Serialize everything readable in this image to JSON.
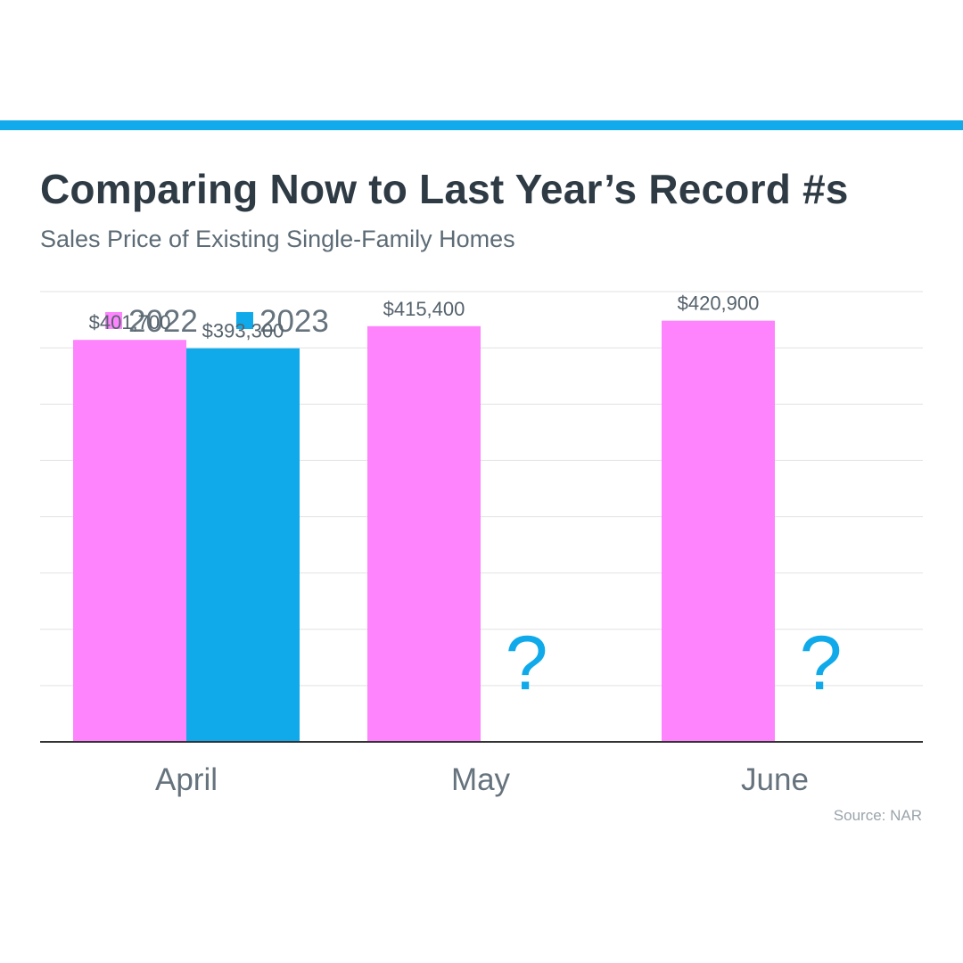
{
  "colors": {
    "accent_rule": "#12aaea",
    "series_2022": "#fd84fd",
    "series_2023": "#10aaea",
    "gridline": "#e2e2e2",
    "baseline": "#333333"
  },
  "chart_data": {
    "type": "bar",
    "title": "Comparing Now to Last Year’s Record #s",
    "subtitle": "Sales Price of Existing Single-Family Homes",
    "xlabel": "",
    "ylabel": "",
    "categories": [
      "April",
      "May",
      "June"
    ],
    "series": [
      {
        "name": "2022",
        "values": [
          401700,
          415400,
          420900
        ],
        "labels": [
          "$401,700",
          "$415,400",
          "$420,900"
        ]
      },
      {
        "name": "2023",
        "values": [
          393300,
          null,
          null
        ],
        "labels": [
          "$393,300",
          "?",
          "?"
        ]
      }
    ],
    "ylim": [
      0,
      450000
    ],
    "grid": true,
    "legend": "top-left",
    "source": "Source: NAR"
  }
}
